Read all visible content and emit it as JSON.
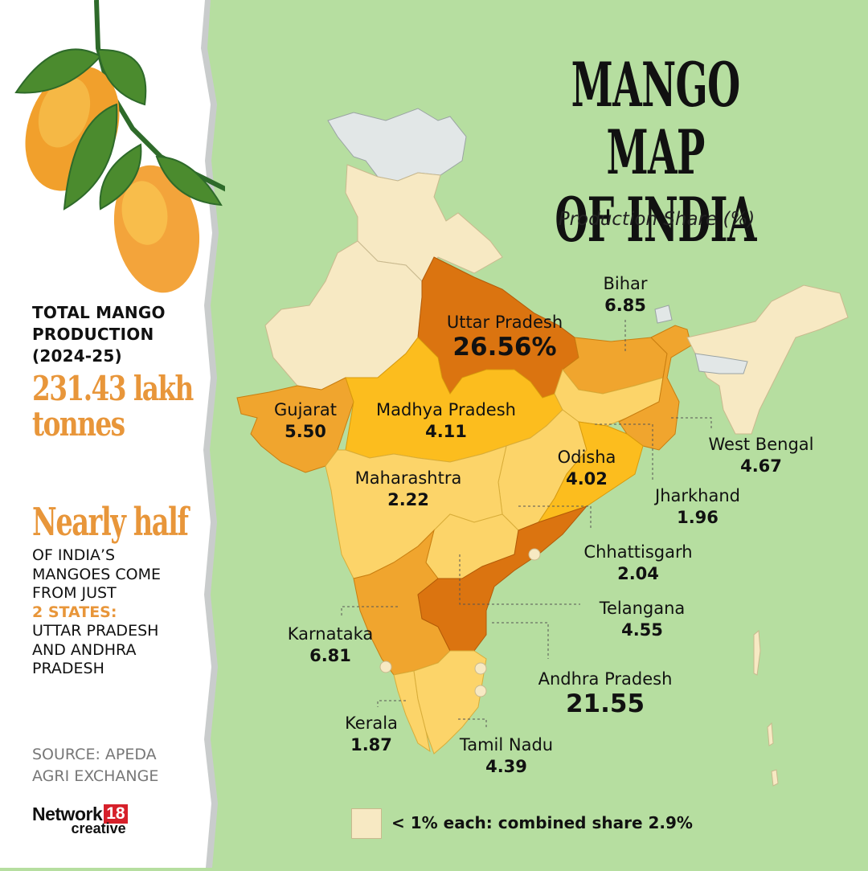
{
  "title_line1": "MANGO MAP",
  "title_line2": "OF INDIA",
  "subtitle": "Production Share (%)",
  "sidebar": {
    "total_label_line1": "TOTAL MANGO",
    "total_label_line2": "PRODUCTION",
    "total_label_line3": "(2024-25)",
    "total_value_line1": "231.43 lakh",
    "total_value_line2": "tonnes",
    "headline": "Nearly half",
    "body_line1": "OF INDIA’S",
    "body_line2": "MANGOES COME",
    "body_line3": "FROM JUST",
    "body_highlight": "2 STATES:",
    "body_line4": "UTTAR PRADESH",
    "body_line5": "AND ANDHRA",
    "body_line6": "PRADESH",
    "source_line1": "SOURCE: APEDA",
    "source_line2": "AGRI EXCHANGE"
  },
  "brand": {
    "word": "Network",
    "number": "18",
    "sub": "creative"
  },
  "states": [
    {
      "name": "Uttar Pradesh",
      "value": "26.56%"
    },
    {
      "name": "Bihar",
      "value": "6.85"
    },
    {
      "name": "Gujarat",
      "value": "5.50"
    },
    {
      "name": "Madhya Pradesh",
      "value": "4.11"
    },
    {
      "name": "Odisha",
      "value": "4.02"
    },
    {
      "name": "West Bengal",
      "value": "4.67"
    },
    {
      "name": "Maharashtra",
      "value": "2.22"
    },
    {
      "name": "Jharkhand",
      "value": "1.96"
    },
    {
      "name": "Chhattisgarh",
      "value": "2.04"
    },
    {
      "name": "Telangana",
      "value": "4.55"
    },
    {
      "name": "Karnataka",
      "value": "6.81"
    },
    {
      "name": "Andhra Pradesh",
      "value": "21.55"
    },
    {
      "name": "Kerala",
      "value": "1.87"
    },
    {
      "name": "Tamil Nadu",
      "value": "4.39"
    }
  ],
  "legend": {
    "label": "< 1% each: combined share 2.9%"
  },
  "colors": {
    "background": "#b6dea0",
    "sidebar": "#ffffff",
    "top_tier": "#db7410",
    "high_tier": "#f0a52e",
    "mid_tier": "#fcbd1e",
    "low_tier": "#fcd469",
    "minor": "#f7e9c3",
    "neighbours": "#e2e7e7",
    "accent": "#e8963a"
  }
}
